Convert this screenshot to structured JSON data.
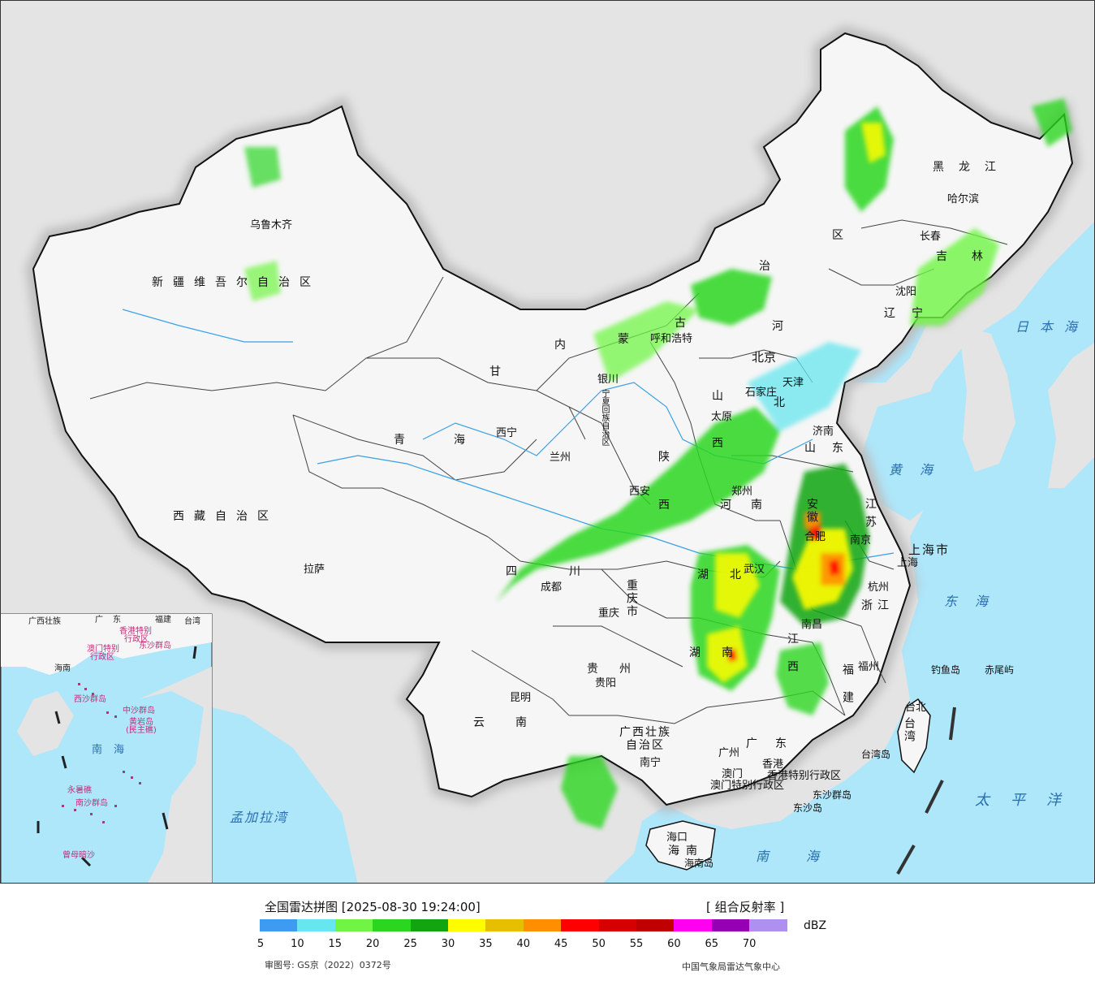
{
  "title": "全国雷达拼图 [2025-08-30 19:24:00]",
  "product": "[ 组合反射率 ]",
  "unit": "dBZ",
  "approval": "审图号: GS京（2022）0372号",
  "credit": "中国气象局雷达气象中心",
  "legend": {
    "colors": [
      "#3d9bf2",
      "#66e6ee",
      "#71f545",
      "#2bd621",
      "#12a50f",
      "#fffc00",
      "#e6c000",
      "#ff8f00",
      "#ff0000",
      "#d60000",
      "#c00000",
      "#ff00f0",
      "#9600b4",
      "#ad90f0"
    ],
    "ticks": [
      "5",
      "10",
      "15",
      "20",
      "25",
      "30",
      "35",
      "40",
      "45",
      "50",
      "55",
      "60",
      "65",
      "70"
    ]
  },
  "cities": {
    "urumqi": "乌鲁木齐",
    "lhasa": "拉萨",
    "xining": "西宁",
    "lanzhou": "兰州",
    "yinchuan": "银川",
    "hohhot": "呼和浩特",
    "beijing": "北京",
    "tianjin": "天津",
    "shijiazhuang": "石家庄",
    "taiyuan": "太原",
    "jinan": "济南",
    "zhengzhou": "郑州",
    "xian": "西安",
    "chengdu": "成都",
    "chongqing": "重庆",
    "wuhan": "武汉",
    "hefei": "合肥",
    "nanjing": "南京",
    "shanghai": "上海",
    "hangzhou": "杭州",
    "nanchang": "南昌",
    "fuzhou": "福州",
    "taibei": "台北",
    "guiyang": "贵阳",
    "kunming": "昆明",
    "nanning": "南宁",
    "guangzhou": "广州",
    "macau": "澳门",
    "hongkong": "香港",
    "haikou": "海口",
    "harbin": "哈尔滨",
    "changchun": "长春",
    "shenyang": "沈阳"
  },
  "provinces": {
    "xinjiang": "新疆维吾尔自治区",
    "tibet": "西藏自治区",
    "qinghai": "青海",
    "gansu": "甘",
    "neimenggu_a": "内",
    "neimenggu_b": "蒙",
    "neimenggu_c": "古",
    "neimenggu_d": "治",
    "neimenggu_e": "区",
    "heilongjiang": "黑龙江",
    "jilin": "吉林",
    "liaoning": "辽宁",
    "hebei_a": "河",
    "hebei_b": "北",
    "shanxi_a": "山",
    "shanxi_b": "西",
    "shandong": "山东",
    "henan": "河南",
    "shaanxi_a": "陕",
    "shaanxi_b": "西",
    "sichuan_a": "四",
    "sichuan_b": "川",
    "chongqing": "重庆市",
    "hubei": "湖北",
    "anhui": "安徽",
    "jiangsu": "江苏",
    "shanghai": "上海市",
    "zhejiang": "浙江",
    "jiangxi": "江西",
    "hunan": "湖南",
    "guizhou": "贵州",
    "yunnan": "云南",
    "guangxi_a": "广西壮族",
    "guangxi_b": "自治区",
    "guangdong": "广东",
    "fujian": "福建",
    "taiwan": "台湾",
    "hainan": "海南",
    "ningxia": "宁夏回族自治区",
    "hk_sar": "香港特别行政区",
    "macau_sar": "澳门特别行政区"
  },
  "places": {
    "taiwan_island": "台湾岛",
    "hainan_island": "海南岛",
    "diaoyu": "钓鱼岛",
    "chiwei": "赤尾屿",
    "dongsha_islands": "东沙群岛",
    "dongsha_island": "东沙岛"
  },
  "seas": {
    "japan_sea": "日本海",
    "yellow_sea": "黄海",
    "east_sea": "东海",
    "pacific": "太平洋",
    "south_sea": "南海",
    "bengal": "孟加拉湾"
  },
  "inset": {
    "guangxi": "广西壮族",
    "guangdong": "广东",
    "fujian": "福建",
    "taiwan": "台湾",
    "hk": "香港特别",
    "hk2": "行政区",
    "macau": "澳门特别",
    "macau2": "行政区",
    "dongsha": "东沙群岛",
    "hainan": "海南",
    "xisha": "西沙群岛",
    "zhongsha": "中沙群岛",
    "huangyan": "黄岩岛",
    "south_sea": "南海",
    "yongshu": "永暑礁",
    "nansha": "南沙群岛",
    "zengmu": "曾母暗沙",
    "minsheng": "(民主礁)"
  }
}
